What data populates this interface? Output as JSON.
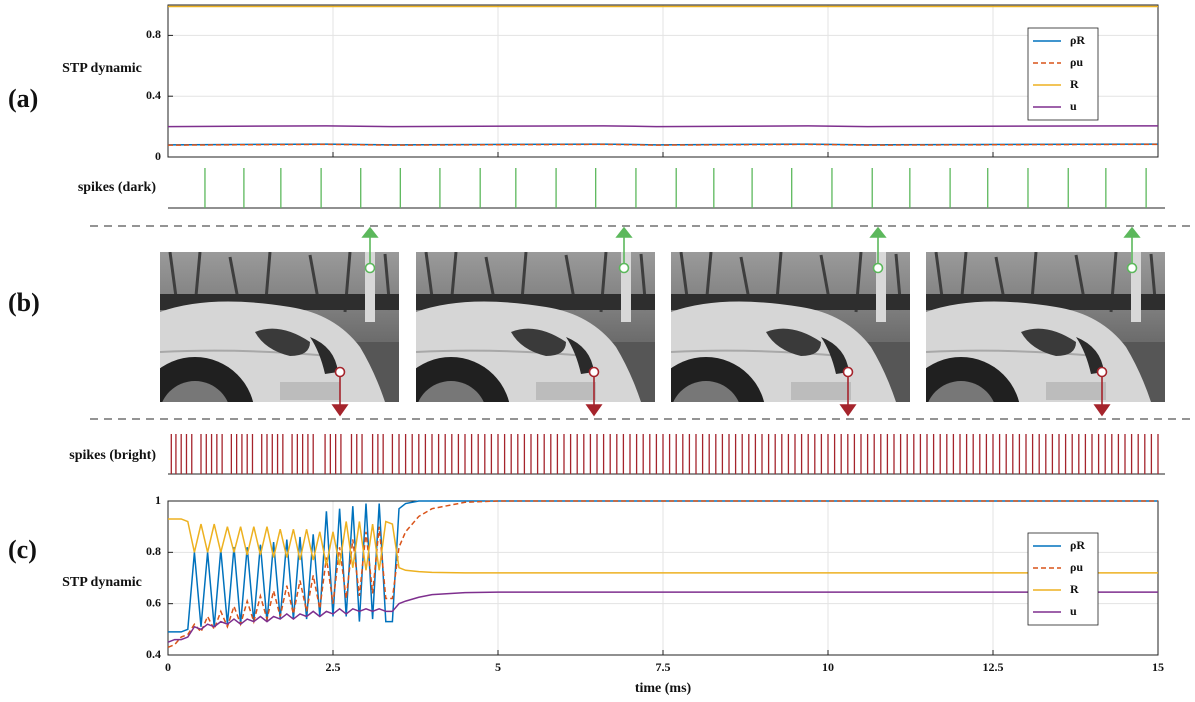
{
  "panel_labels": [
    "(a)",
    "(b)",
    "(c)"
  ],
  "chart_data": [
    {
      "type": "line",
      "ylabel": "STP dynamic",
      "x": [
        0,
        2.4,
        3.4,
        6.6,
        7.4,
        9.7,
        10.6,
        14.7,
        15
      ],
      "xlim": [
        0,
        15
      ],
      "xticks": [
        0,
        2.5,
        5,
        7.5,
        10,
        12.5,
        15
      ],
      "xtick_labels": false,
      "ylim": [
        0,
        1
      ],
      "yticks": [
        0,
        0.4,
        0.8
      ],
      "grid": true,
      "legend": "upper right",
      "series": [
        {
          "name": "ρR",
          "color": "#0072bd",
          "linestyle": "solid",
          "values": [
            0.08,
            0.085,
            0.08,
            0.085,
            0.08,
            0.085,
            0.08,
            0.085,
            0.085
          ]
        },
        {
          "name": "ρu",
          "color": "#d95319",
          "linestyle": "dashed",
          "values": [
            0.078,
            0.083,
            0.078,
            0.083,
            0.078,
            0.083,
            0.078,
            0.083,
            0.083
          ]
        },
        {
          "name": "R",
          "color": "#edb120",
          "linestyle": "solid",
          "values": [
            0.99,
            0.99,
            0.99,
            0.99,
            0.99,
            0.99,
            0.99,
            0.99,
            0.99
          ]
        },
        {
          "name": "u",
          "color": "#7e2f8e",
          "linestyle": "solid",
          "values": [
            0.2,
            0.205,
            0.2,
            0.205,
            0.2,
            0.205,
            0.2,
            0.205,
            0.205
          ]
        }
      ]
    },
    {
      "type": "spikes",
      "ylabel": "spikes (dark)",
      "color": "#5cb85c",
      "xlim": [
        0,
        15
      ],
      "x": [
        0.56,
        1.15,
        1.71,
        2.32,
        2.92,
        3.52,
        4.12,
        4.73,
        5.27,
        5.88,
        6.48,
        7.09,
        7.7,
        8.27,
        8.85,
        9.45,
        10.06,
        10.67,
        11.24,
        11.85,
        12.42,
        13.03,
        13.64,
        14.21,
        14.82
      ]
    },
    {
      "type": "spikes",
      "ylabel": "spikes (bright)",
      "color": "#a5242c",
      "xlim": [
        0,
        15
      ],
      "x": [
        0.05,
        0.12,
        0.2,
        0.28,
        0.36,
        0.5,
        0.58,
        0.66,
        0.74,
        0.82,
        0.96,
        1.04,
        1.12,
        1.2,
        1.28,
        1.42,
        1.5,
        1.58,
        1.66,
        1.74,
        1.88,
        1.96,
        2.04,
        2.12,
        2.2,
        2.38,
        2.46,
        2.54,
        2.62,
        2.78,
        2.86,
        2.94,
        3.1,
        3.18,
        3.26,
        3.4,
        3.5,
        3.6,
        3.7,
        3.8,
        3.9,
        4,
        4.1,
        4.2,
        4.3,
        4.4,
        4.5,
        4.6,
        4.7,
        4.8,
        4.9,
        5,
        5.1,
        5.2,
        5.3,
        5.4,
        5.5,
        5.6,
        5.7,
        5.8,
        5.9,
        6,
        6.1,
        6.2,
        6.3,
        6.4,
        6.5,
        6.6,
        6.7,
        6.8,
        6.9,
        7,
        7.1,
        7.2,
        7.3,
        7.4,
        7.5,
        7.6,
        7.7,
        7.8,
        7.9,
        8,
        8.1,
        8.2,
        8.3,
        8.4,
        8.5,
        8.6,
        8.7,
        8.8,
        8.9,
        9,
        9.1,
        9.2,
        9.3,
        9.4,
        9.5,
        9.6,
        9.7,
        9.8,
        9.9,
        10,
        10.1,
        10.2,
        10.3,
        10.4,
        10.5,
        10.6,
        10.7,
        10.8,
        10.9,
        11,
        11.1,
        11.2,
        11.3,
        11.4,
        11.5,
        11.6,
        11.7,
        11.8,
        11.9,
        12,
        12.1,
        12.2,
        12.3,
        12.4,
        12.5,
        12.6,
        12.7,
        12.8,
        12.9,
        13,
        13.1,
        13.2,
        13.3,
        13.4,
        13.5,
        13.6,
        13.7,
        13.8,
        13.9,
        14,
        14.1,
        14.2,
        14.3,
        14.4,
        14.5,
        14.6,
        14.7,
        14.8,
        14.9,
        15
      ]
    },
    {
      "type": "line",
      "ylabel": "STP dynamic",
      "xlabel": "time  (ms)",
      "x": [
        0,
        0.1,
        0.2,
        0.3,
        0.4,
        0.5,
        0.6,
        0.7,
        0.8,
        0.9,
        1,
        1.1,
        1.2,
        1.3,
        1.4,
        1.5,
        1.6,
        1.7,
        1.8,
        1.9,
        2,
        2.1,
        2.2,
        2.3,
        2.4,
        2.5,
        2.6,
        2.7,
        2.8,
        2.9,
        3,
        3.1,
        3.2,
        3.3,
        3.4,
        3.5,
        3.6,
        3.8,
        4,
        4.5,
        5,
        6,
        7,
        8,
        9,
        10,
        11,
        12,
        13,
        14,
        15
      ],
      "xlim": [
        0,
        15
      ],
      "xticks": [
        0,
        2.5,
        5,
        7.5,
        10,
        12.5,
        15
      ],
      "ylim": [
        0.4,
        1
      ],
      "yticks": [
        0.4,
        0.6,
        0.8,
        1
      ],
      "grid": true,
      "legend": "right",
      "series": [
        {
          "name": "ρR",
          "color": "#0072bd",
          "linestyle": "solid",
          "values": [
            0.49,
            0.49,
            0.49,
            0.5,
            0.8,
            0.51,
            0.8,
            0.51,
            0.81,
            0.52,
            0.82,
            0.52,
            0.82,
            0.53,
            0.83,
            0.53,
            0.84,
            0.54,
            0.85,
            0.54,
            0.86,
            0.54,
            0.87,
            0.55,
            0.96,
            0.55,
            0.97,
            0.55,
            0.98,
            0.53,
            0.99,
            0.54,
            0.99,
            0.53,
            0.53,
            0.97,
            0.99,
            1,
            1,
            1,
            1,
            1,
            1,
            1,
            1,
            1,
            1,
            1,
            1,
            1,
            1
          ]
        },
        {
          "name": "ρu",
          "color": "#d95319",
          "linestyle": "dashed",
          "values": [
            0.43,
            0.44,
            0.47,
            0.48,
            0.52,
            0.49,
            0.55,
            0.5,
            0.57,
            0.51,
            0.59,
            0.52,
            0.61,
            0.53,
            0.63,
            0.54,
            0.65,
            0.55,
            0.67,
            0.56,
            0.69,
            0.57,
            0.71,
            0.58,
            0.78,
            0.6,
            0.82,
            0.62,
            0.85,
            0.63,
            0.88,
            0.64,
            0.9,
            0.62,
            0.62,
            0.82,
            0.88,
            0.94,
            0.97,
            0.995,
            1,
            1,
            1,
            1,
            1,
            1,
            1,
            1,
            1,
            1,
            1
          ]
        },
        {
          "name": "R",
          "color": "#edb120",
          "linestyle": "solid",
          "values": [
            0.93,
            0.93,
            0.93,
            0.92,
            0.8,
            0.91,
            0.8,
            0.91,
            0.8,
            0.9,
            0.8,
            0.9,
            0.79,
            0.9,
            0.79,
            0.9,
            0.78,
            0.89,
            0.78,
            0.89,
            0.77,
            0.89,
            0.77,
            0.88,
            0.75,
            0.88,
            0.75,
            0.92,
            0.74,
            0.92,
            0.73,
            0.91,
            0.73,
            0.92,
            0.91,
            0.74,
            0.73,
            0.725,
            0.722,
            0.72,
            0.72,
            0.72,
            0.72,
            0.72,
            0.72,
            0.72,
            0.72,
            0.72,
            0.72,
            0.72,
            0.72
          ]
        },
        {
          "name": "u",
          "color": "#7e2f8e",
          "linestyle": "solid",
          "values": [
            0.45,
            0.46,
            0.46,
            0.47,
            0.51,
            0.5,
            0.52,
            0.51,
            0.53,
            0.52,
            0.54,
            0.52,
            0.54,
            0.53,
            0.55,
            0.53,
            0.55,
            0.54,
            0.56,
            0.54,
            0.56,
            0.55,
            0.57,
            0.55,
            0.57,
            0.56,
            0.58,
            0.56,
            0.58,
            0.57,
            0.58,
            0.57,
            0.58,
            0.57,
            0.57,
            0.6,
            0.61,
            0.625,
            0.635,
            0.643,
            0.645,
            0.645,
            0.645,
            0.645,
            0.645,
            0.645,
            0.645,
            0.645,
            0.645,
            0.645,
            0.645
          ]
        }
      ]
    }
  ]
}
